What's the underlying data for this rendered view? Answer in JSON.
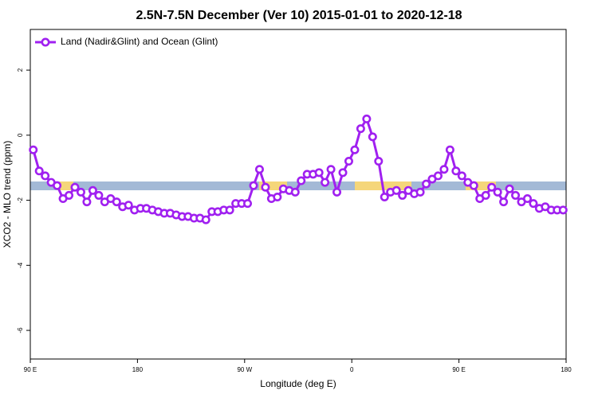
{
  "chart_data": {
    "type": "line",
    "title": "2.5N-7.5N December (Ver 10)   2015-01-01 to 2020-12-18",
    "x_label": "Longitude (deg E)",
    "y_label": "XCO2 - MLO trend (ppm)",
    "xlim": [
      90,
      540
    ],
    "ylim": [
      -6.88,
      3.25
    ],
    "xticks": [
      {
        "value": 90,
        "label": "90 E"
      },
      180,
      {
        "value": 270,
        "label": "90 W"
      },
      {
        "value": 360,
        "label": "0"
      },
      {
        "value": 450,
        "label": "90 E"
      },
      {
        "value": 540,
        "label": "180"
      }
    ],
    "yticks": [
      2,
      0,
      -2,
      -4,
      -6
    ],
    "legend": "top-left",
    "x": [
      92.5,
      97.5,
      102.5,
      107.5,
      112.5,
      117.5,
      122.5,
      127.5,
      132.5,
      137.5,
      142.5,
      147.5,
      152.5,
      157.5,
      162.5,
      167.5,
      172.5,
      177.5,
      182.5,
      187.5,
      192.5,
      197.5,
      202.5,
      207.5,
      212.5,
      217.5,
      222.5,
      227.5,
      232.5,
      237.5,
      242.5,
      247.5,
      252.5,
      257.5,
      262.5,
      267.5,
      272.5,
      277.5,
      282.5,
      287.5,
      292.5,
      297.5,
      302.5,
      307.5,
      312.5,
      317.5,
      322.5,
      327.5,
      332.5,
      337.5,
      342.5,
      347.5,
      352.5,
      357.5,
      362.5,
      367.5,
      372.5,
      377.5,
      382.5,
      387.5,
      392.5,
      397.5,
      402.5,
      407.5,
      412.5,
      417.5,
      422.5,
      427.5,
      432.5,
      437.5,
      442.5,
      447.5,
      452.5,
      457.5,
      462.5,
      467.5,
      472.5,
      477.5,
      482.5,
      487.5,
      492.5,
      497.5,
      502.5,
      507.5,
      512.5,
      517.5,
      522.5,
      527.5,
      532.5,
      537.5
    ],
    "series": [
      {
        "name": "Land (Nadir&Glint) and Ocean (Glint)",
        "color": "#a020f0",
        "values": [
          -0.45,
          -1.1,
          -1.25,
          -1.45,
          -1.55,
          -1.95,
          -1.85,
          -1.6,
          -1.75,
          -2.05,
          -1.7,
          -1.85,
          -2.05,
          -1.95,
          -2.05,
          -2.2,
          -2.15,
          -2.3,
          -2.25,
          -2.25,
          -2.3,
          -2.35,
          -2.4,
          -2.4,
          -2.45,
          -2.5,
          -2.5,
          -2.55,
          -2.55,
          -2.6,
          -2.35,
          -2.35,
          -2.3,
          -2.3,
          -2.1,
          -2.1,
          -2.1,
          -1.55,
          -1.05,
          -1.6,
          -1.95,
          -1.9,
          -1.65,
          -1.7,
          -1.75,
          -1.4,
          -1.2,
          -1.2,
          -1.15,
          -1.45,
          -1.05,
          -1.75,
          -1.15,
          -0.8,
          -0.45,
          0.2,
          0.5,
          -0.05,
          -0.8,
          -1.9,
          -1.75,
          -1.7,
          -1.85,
          -1.7,
          -1.8,
          -1.75,
          -1.5,
          -1.35,
          -1.25,
          -1.05,
          -0.45,
          -1.1,
          -1.25,
          -1.45,
          -1.55,
          -1.95,
          -1.85,
          -1.6,
          -1.75,
          -2.05,
          -1.65,
          -1.85,
          -2.05,
          -1.95,
          -2.1,
          -2.25,
          -2.2,
          -2.3,
          -2.3,
          -2.3
        ]
      }
    ]
  }
}
